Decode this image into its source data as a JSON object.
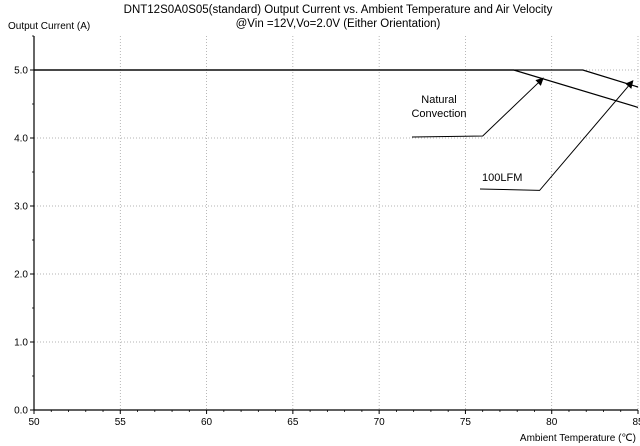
{
  "chart_data": {
    "type": "line",
    "title": "DNT12S0A0S05(standard)  Output Current vs. Ambient Temperature and Air Velocity",
    "subtitle": "@Vin =12V,Vo=2.0V  (Either Orientation)",
    "xlabel": "Ambient Temperature (℃)",
    "ylabel": "Output Current (A)",
    "xlim": [
      50,
      85
    ],
    "ylim": [
      0,
      5.5
    ],
    "x_ticks": [
      "50",
      "55",
      "60",
      "65",
      "70",
      "75",
      "80",
      "85"
    ],
    "y_ticks": [
      "0.0",
      "1.0",
      "2.0",
      "3.0",
      "4.0",
      "5.0"
    ],
    "grid": true,
    "series": [
      {
        "name": "Natural Convection",
        "x": [
          50,
          77.8,
          85
        ],
        "y": [
          5.0,
          5.0,
          4.45
        ],
        "color": "#000000"
      },
      {
        "name": "100LFM",
        "x": [
          50,
          81.8,
          85
        ],
        "y": [
          5.0,
          5.0,
          4.75
        ],
        "color": "#000000"
      }
    ],
    "annotations": [
      {
        "text_lines": [
          "Natural",
          "Convection"
        ],
        "pointer_from": [
          76.0,
          4.03
        ],
        "pointer_to": [
          79.5,
          4.88
        ]
      },
      {
        "text_lines": [
          "100LFM"
        ],
        "pointer_from": [
          79.3,
          3.23
        ],
        "pointer_to": [
          84.7,
          4.84
        ]
      }
    ]
  }
}
